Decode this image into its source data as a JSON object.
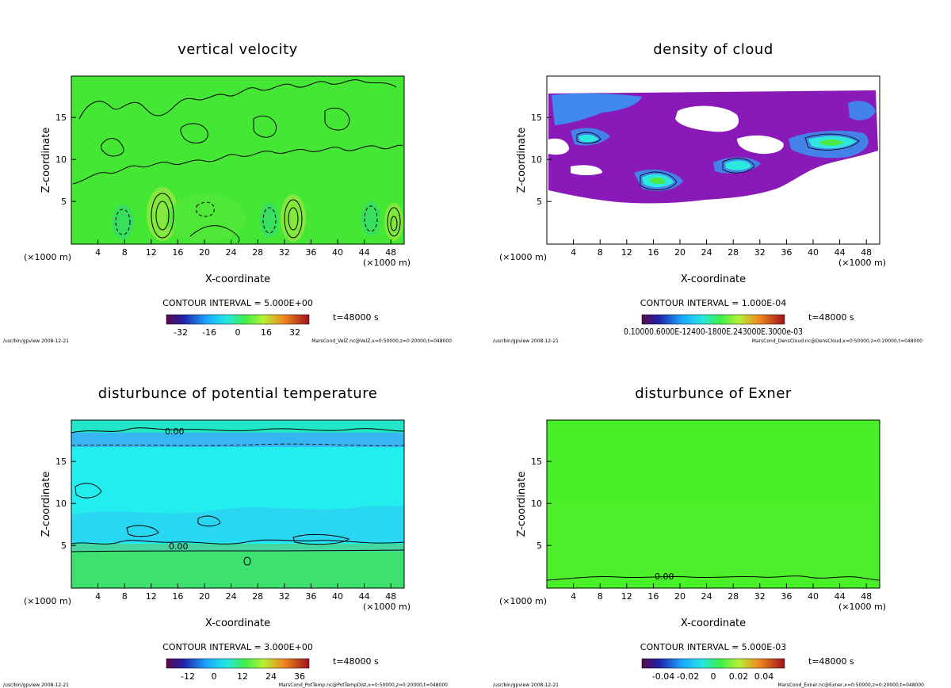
{
  "panels": [
    {
      "title": "vertical velocity",
      "xlabel": "X-coordinate",
      "ylabel": "Z-coordinate",
      "unit_left": "(×1000 m)",
      "unit_right": "(×1000 m)",
      "contour_interval": "CONTOUR INTERVAL = 5.000E+00",
      "time": "t=48000 s",
      "colorbar_ticks": [
        "-32",
        "-16",
        "0",
        "16",
        "32"
      ],
      "footer_left": "/usr/bin/gpview  2008-12-21",
      "footer_right": "MarsCond_VelZ.nc@VelZ,x=0:50000,z=0:20000,t=048000",
      "contour_labels": []
    },
    {
      "title": "density of cloud",
      "xlabel": "X-coordinate",
      "ylabel": "Z-coordinate",
      "unit_left": "(×1000 m)",
      "unit_right": "(×1000 m)",
      "contour_interval": "CONTOUR INTERVAL = 1.000E-04",
      "time": "t=48000 s",
      "colorbar_ticks": [
        "0.10000.6000E-12400-1800E.243000E.3000e-03"
      ],
      "footer_left": "/usr/bin/gpview  2008-12-21",
      "footer_right": "MarsCond_DensCloud.nc@DensCloud,x=0:50000,z=0:20000,t=048000",
      "contour_labels": []
    },
    {
      "title": "disturbunce of potential temperature",
      "xlabel": "X-coordinate",
      "ylabel": "Z-coordinate",
      "unit_left": "(×1000 m)",
      "unit_right": "(×1000 m)",
      "contour_interval": "CONTOUR INTERVAL = 3.000E+00",
      "time": "t=48000 s",
      "colorbar_ticks": [
        "-12",
        "0",
        "12",
        "24",
        "36"
      ],
      "footer_left": "/usr/bin/gpview  2008-12-21",
      "footer_right": "MarsCond_PotTemp.nc@PotTempDist,x=0:50000,z=0:20000,t=048000",
      "contour_labels": [
        "0.00",
        "0.00"
      ]
    },
    {
      "title": "disturbunce of Exner",
      "xlabel": "X-coordinate",
      "ylabel": "Z-coordinate",
      "unit_left": "(×1000 m)",
      "unit_right": "(×1000 m)",
      "contour_interval": "CONTOUR INTERVAL = 5.000E-03",
      "time": "t=48000 s",
      "colorbar_ticks": [
        "-0.04",
        "-0.02",
        "0",
        "0.02",
        "0.04"
      ],
      "footer_left": "/usr/bin/gpview  2008-12-21",
      "footer_right": "MarsCond_Exner.nc@Exner,x=0:50000,z=0:20000,t=048000",
      "contour_labels": [
        "0.00"
      ]
    }
  ],
  "chart_data": [
    {
      "type": "heatmap",
      "title": "vertical velocity",
      "xlabel": "X-coordinate",
      "ylabel": "Z-coordinate",
      "xlim": [
        0,
        50
      ],
      "ylim": [
        0,
        20
      ],
      "xticks": [
        4,
        8,
        12,
        16,
        20,
        24,
        28,
        32,
        36,
        40,
        44,
        48
      ],
      "yticks": [
        5,
        10,
        15
      ],
      "colorbar_range": [
        -40,
        40
      ],
      "colorbar_ticks": [
        -32,
        -16,
        0,
        16,
        32
      ],
      "contour_interval": 5.0
    },
    {
      "type": "heatmap",
      "title": "density of cloud",
      "xlabel": "X-coordinate",
      "ylabel": "Z-coordinate",
      "xlim": [
        0,
        50
      ],
      "ylim": [
        0,
        20
      ],
      "xticks": [
        4,
        8,
        12,
        16,
        20,
        24,
        28,
        32,
        36,
        40,
        44,
        48
      ],
      "yticks": [
        5,
        10,
        15
      ],
      "contour_interval": 0.0001
    },
    {
      "type": "heatmap",
      "title": "disturbunce of potential temperature",
      "xlabel": "X-coordinate",
      "ylabel": "Z-coordinate",
      "xlim": [
        0,
        50
      ],
      "ylim": [
        0,
        20
      ],
      "xticks": [
        4,
        8,
        12,
        16,
        20,
        24,
        28,
        32,
        36,
        40,
        44,
        48
      ],
      "yticks": [
        5,
        10,
        15
      ],
      "colorbar_range": [
        -18,
        42
      ],
      "colorbar_ticks": [
        -12,
        0,
        12,
        24,
        36
      ],
      "contour_interval": 3.0
    },
    {
      "type": "heatmap",
      "title": "disturbunce of Exner",
      "xlabel": "X-coordinate",
      "ylabel": "Z-coordinate",
      "xlim": [
        0,
        50
      ],
      "ylim": [
        0,
        20
      ],
      "xticks": [
        4,
        8,
        12,
        16,
        20,
        24,
        28,
        32,
        36,
        40,
        44,
        48
      ],
      "yticks": [
        5,
        10,
        15
      ],
      "colorbar_range": [
        -0.05,
        0.05
      ],
      "colorbar_ticks": [
        -0.04,
        -0.02,
        0,
        0.02,
        0.04
      ],
      "contour_interval": 0.005
    }
  ]
}
